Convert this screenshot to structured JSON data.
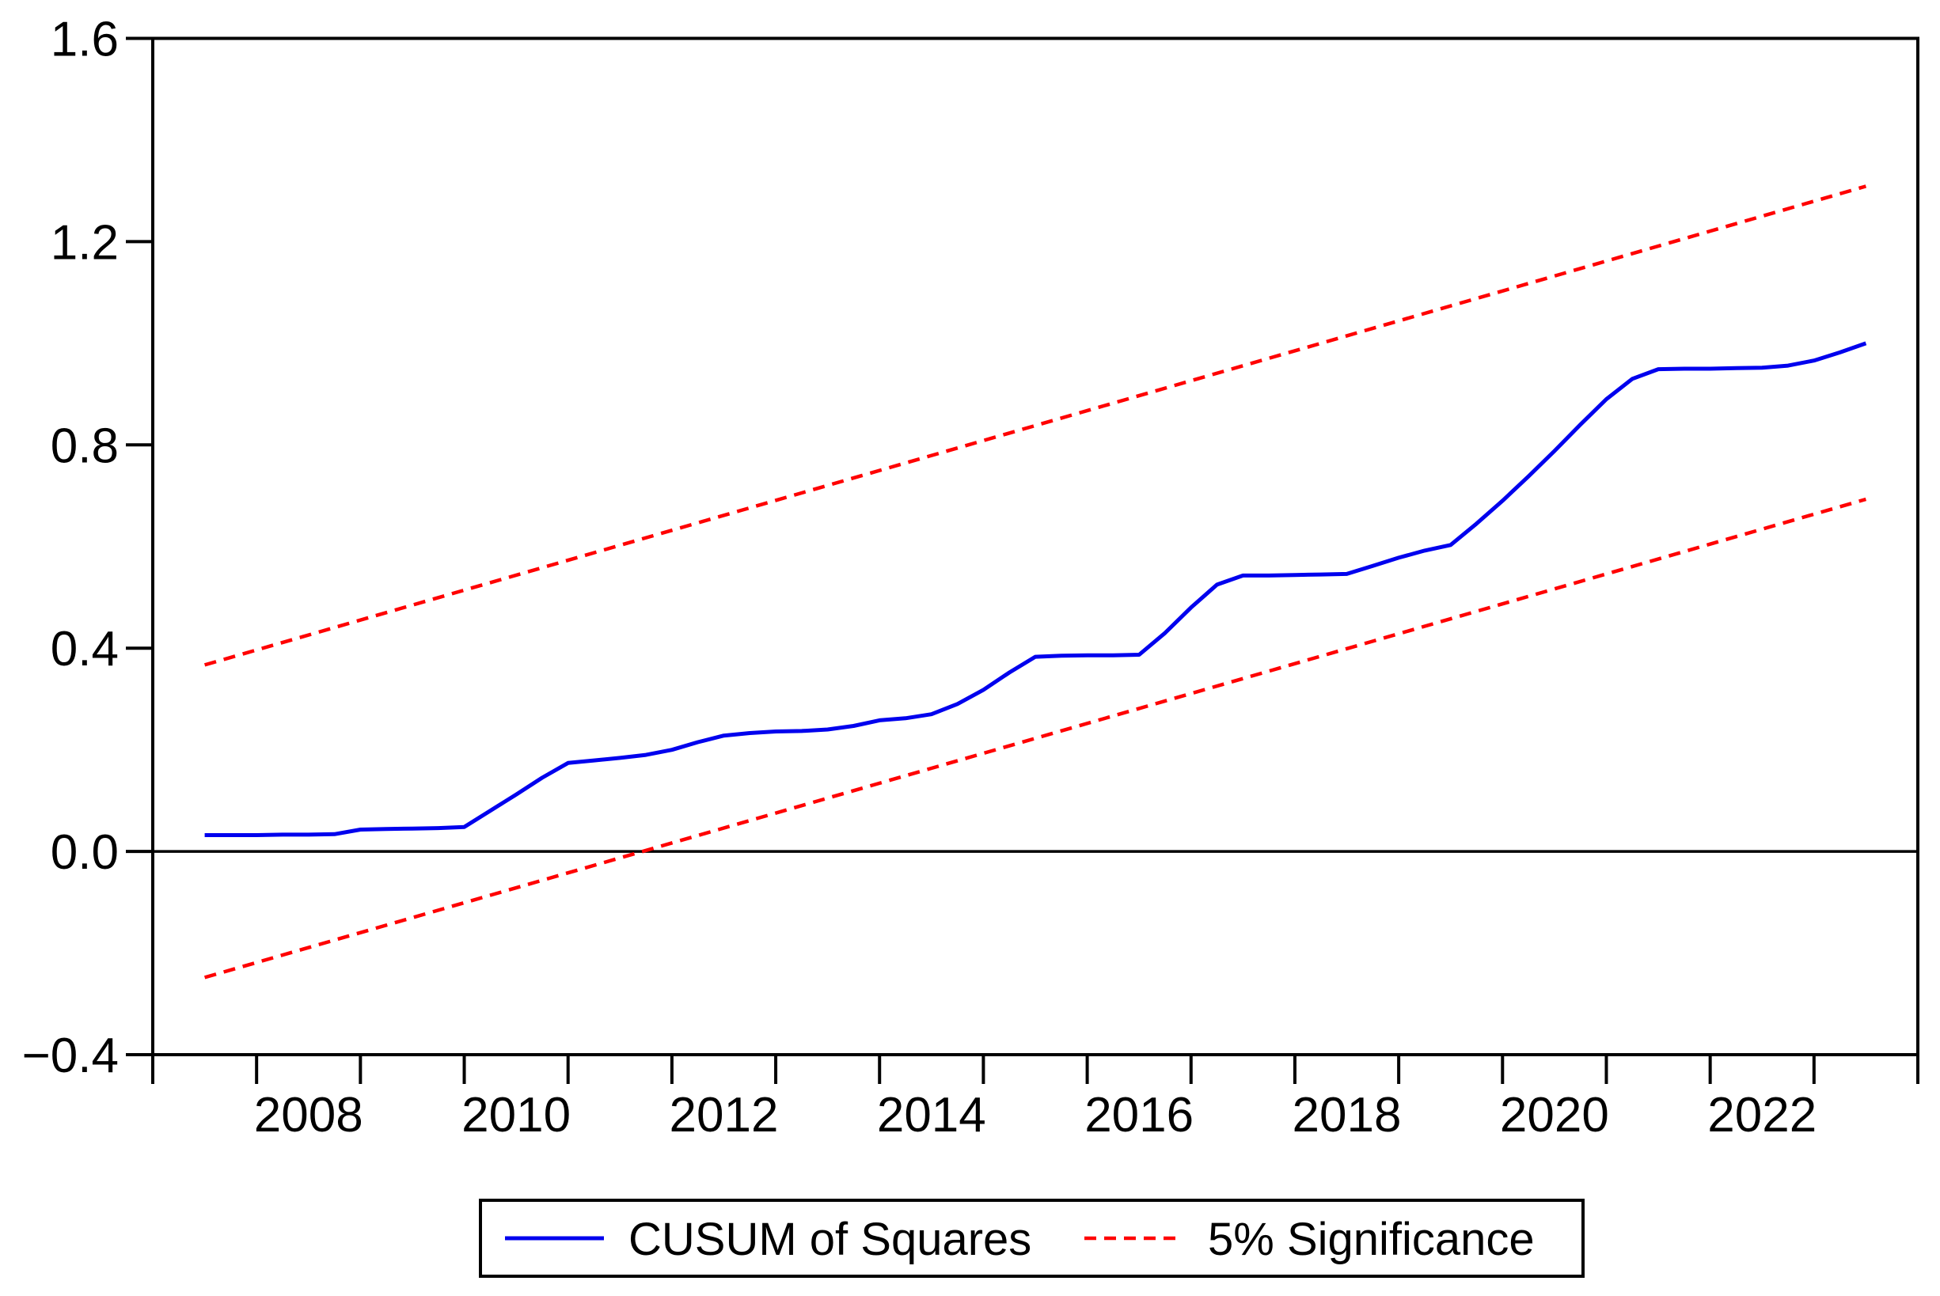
{
  "chart_data": {
    "type": "line",
    "title": "",
    "xlabel": "",
    "ylabel": "",
    "grid": false,
    "background_color": "#ffffff",
    "axis_color": "#000000",
    "x_range": [
      2007,
      2024
    ],
    "y_range": [
      -0.4,
      1.6
    ],
    "y_ticks": [
      {
        "v": 1.6,
        "label": "1.6"
      },
      {
        "v": 1.2,
        "label": "1.2"
      },
      {
        "v": 0.8,
        "label": "0.8"
      },
      {
        "v": 0.4,
        "label": "0.4"
      },
      {
        "v": 0.0,
        "label": "0.0"
      },
      {
        "v": -0.4,
        "label": "−0.4"
      }
    ],
    "x_labels": [
      {
        "v": 2008.5,
        "label": "2008"
      },
      {
        "v": 2010.5,
        "label": "2010"
      },
      {
        "v": 2012.5,
        "label": "2012"
      },
      {
        "v": 2014.5,
        "label": "2014"
      },
      {
        "v": 2016.5,
        "label": "2016"
      },
      {
        "v": 2018.5,
        "label": "2018"
      },
      {
        "v": 2020.5,
        "label": "2020"
      },
      {
        "v": 2022.5,
        "label": "2022"
      }
    ],
    "zero_line": 0.0,
    "series": [
      {
        "name": "CUSUM of Squares",
        "color": "#0000ee",
        "style": "solid",
        "points": [
          [
            2007.5,
            0.032
          ],
          [
            2007.75,
            0.032
          ],
          [
            2008,
            0.032
          ],
          [
            2008.25,
            0.033
          ],
          [
            2008.5,
            0.033
          ],
          [
            2008.75,
            0.034
          ],
          [
            2009,
            0.043
          ],
          [
            2009.25,
            0.044
          ],
          [
            2009.5,
            0.045
          ],
          [
            2009.75,
            0.046
          ],
          [
            2010,
            0.048
          ],
          [
            2010.25,
            0.08
          ],
          [
            2010.5,
            0.112
          ],
          [
            2010.75,
            0.145
          ],
          [
            2011,
            0.174
          ],
          [
            2011.25,
            0.179
          ],
          [
            2011.5,
            0.184
          ],
          [
            2011.75,
            0.19
          ],
          [
            2012,
            0.2
          ],
          [
            2012.25,
            0.215
          ],
          [
            2012.5,
            0.228
          ],
          [
            2012.75,
            0.233
          ],
          [
            2013,
            0.236
          ],
          [
            2013.25,
            0.237
          ],
          [
            2013.5,
            0.24
          ],
          [
            2013.75,
            0.247
          ],
          [
            2014,
            0.258
          ],
          [
            2014.25,
            0.262
          ],
          [
            2014.5,
            0.27
          ],
          [
            2014.75,
            0.29
          ],
          [
            2015,
            0.318
          ],
          [
            2015.25,
            0.352
          ],
          [
            2015.5,
            0.383
          ],
          [
            2015.75,
            0.385
          ],
          [
            2016,
            0.386
          ],
          [
            2016.25,
            0.386
          ],
          [
            2016.5,
            0.387
          ],
          [
            2016.75,
            0.43
          ],
          [
            2017,
            0.48
          ],
          [
            2017.25,
            0.525
          ],
          [
            2017.5,
            0.543
          ],
          [
            2017.75,
            0.543
          ],
          [
            2018,
            0.544
          ],
          [
            2018.25,
            0.545
          ],
          [
            2018.5,
            0.546
          ],
          [
            2018.75,
            0.562
          ],
          [
            2019,
            0.578
          ],
          [
            2019.25,
            0.592
          ],
          [
            2019.5,
            0.603
          ],
          [
            2019.75,
            0.645
          ],
          [
            2020,
            0.69
          ],
          [
            2020.25,
            0.738
          ],
          [
            2020.5,
            0.788
          ],
          [
            2020.75,
            0.84
          ],
          [
            2021,
            0.89
          ],
          [
            2021.25,
            0.93
          ],
          [
            2021.5,
            0.949
          ],
          [
            2021.75,
            0.95
          ],
          [
            2022,
            0.95
          ],
          [
            2022.25,
            0.951
          ],
          [
            2022.5,
            0.952
          ],
          [
            2022.75,
            0.956
          ],
          [
            2023,
            0.966
          ],
          [
            2023.25,
            0.982
          ],
          [
            2023.5,
            1.0
          ]
        ]
      },
      {
        "name": "5% Significance (upper band)",
        "color": "#ff0000",
        "style": "dashed",
        "points": [
          [
            2007.5,
            0.367
          ],
          [
            2023.5,
            1.309
          ]
        ]
      },
      {
        "name": "5% Significance (lower band)",
        "color": "#ff0000",
        "style": "dashed",
        "points": [
          [
            2007.5,
            -0.248
          ],
          [
            2023.5,
            0.693
          ]
        ]
      }
    ],
    "legend": {
      "position": "bottom-center",
      "border": true,
      "entries": [
        {
          "label": "CUSUM of Squares",
          "color": "#0000ee",
          "style": "solid"
        },
        {
          "label": "5% Significance",
          "color": "#ff0000",
          "style": "dashed"
        }
      ]
    }
  }
}
